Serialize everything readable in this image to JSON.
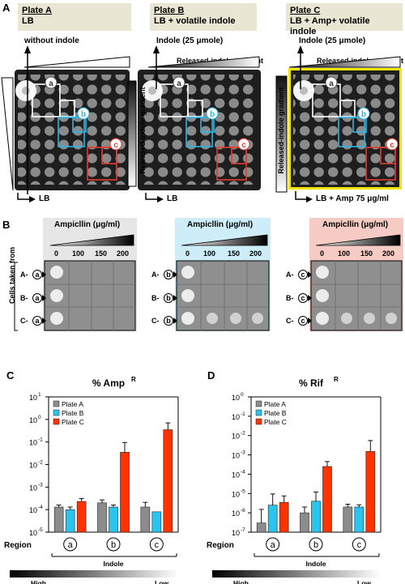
{
  "panel_labels": {
    "A": "A",
    "B": "B",
    "C": "C",
    "D": "D"
  },
  "plates": [
    {
      "title": "Plate A",
      "subtitle": "LB",
      "top_label": "without indole",
      "gradient_label": "",
      "bottom_label": "LB",
      "side_label": "Released-indole gradient",
      "color": "#d9d9d9"
    },
    {
      "title": "Plate B",
      "subtitle": "LB + volatile indole",
      "top_label": "Indole (25 μmole)",
      "gradient_label": "Released-indole gradient",
      "bottom_label": "LB",
      "side_label": "Released-indole gradient",
      "color": "#d9d9d9"
    },
    {
      "title": "Plate C",
      "subtitle": "LB + Amp+ volatile indole",
      "top_label": "Indole (25 μmole)",
      "gradient_label": "Released-indole gradient",
      "bottom_label": "LB + Amp 75 μg/ml",
      "side_label": "",
      "color": "#f2e600"
    }
  ],
  "region_markers": {
    "a": "a",
    "b": "b",
    "c": "c"
  },
  "spot_assay": {
    "ampicillin_label": "Ampicllin  (μg/ml)",
    "concentrations": [
      "0",
      "100",
      "150",
      "200"
    ],
    "cells_label": "Cells taken from",
    "groups": [
      {
        "rows": [
          "A-",
          "B-",
          "C-"
        ],
        "region": "a",
        "bg": "#e6e6e6"
      },
      {
        "rows": [
          "A-",
          "B-",
          "C-"
        ],
        "region": "b",
        "bg": "#cdeef9"
      },
      {
        "rows": [
          "A-",
          "B-",
          "C-"
        ],
        "region": "c",
        "bg": "#f6cbc3"
      }
    ]
  },
  "chart_data": [
    {
      "type": "bar",
      "title": "% Amp",
      "title_superscript": "R",
      "yscale": "log",
      "ylim": [
        1e-05,
        10
      ],
      "yticks": [
        "10",
        "10",
        "10",
        "10",
        "10",
        "10",
        "10"
      ],
      "ytick_exponents": [
        "1",
        "0",
        "-1",
        "-2",
        "-3",
        "-4",
        "-5"
      ],
      "categories": [
        "a",
        "b",
        "c"
      ],
      "xlabel": "Region",
      "gradient_label": "Indole",
      "gradient_ends": [
        "High",
        "Low"
      ],
      "series": [
        {
          "name": "Plate A",
          "color": "#8c8c8c",
          "values": [
            0.00013,
            0.0002,
            0.00013
          ],
          "errors": [
            3e-05,
            7e-05,
            8e-05
          ]
        },
        {
          "name": "Plate B",
          "color": "#29c5ef",
          "values": [
            0.0001,
            0.00013,
            8e-05
          ],
          "errors": [
            3e-05,
            3e-05,
            0
          ]
        },
        {
          "name": "Plate C",
          "color": "#ff3300",
          "values": [
            0.00023,
            0.035,
            0.35
          ],
          "errors": [
            8e-05,
            0.06,
            0.35
          ]
        }
      ]
    },
    {
      "type": "bar",
      "title": "% Rif",
      "title_superscript": "R",
      "yscale": "log",
      "ylim": [
        1e-07,
        1
      ],
      "yticks": [
        "10",
        "10",
        "10",
        "10",
        "10",
        "10",
        "10",
        "10"
      ],
      "ytick_exponents": [
        "0",
        "-1",
        "-2",
        "-3",
        "-4",
        "-5",
        "-6",
        "-7"
      ],
      "categories": [
        "a",
        "b",
        "c"
      ],
      "xlabel": "Region",
      "gradient_label": "Indole",
      "gradient_ends": [
        "High",
        "Low"
      ],
      "series": [
        {
          "name": "Plate A",
          "color": "#8c8c8c",
          "values": [
            3e-07,
            1e-06,
            2e-06
          ],
          "errors": [
            1.2e-06,
            1e-06,
            8e-07
          ]
        },
        {
          "name": "Plate B",
          "color": "#29c5ef",
          "values": [
            2.5e-06,
            4e-06,
            2e-06
          ],
          "errors": [
            7e-06,
            8e-06,
            6e-07
          ]
        },
        {
          "name": "Plate C",
          "color": "#ff3300",
          "values": [
            3.5e-06,
            0.00025,
            0.0015
          ],
          "errors": [
            4e-06,
            0.0002,
            0.004
          ]
        }
      ]
    }
  ]
}
